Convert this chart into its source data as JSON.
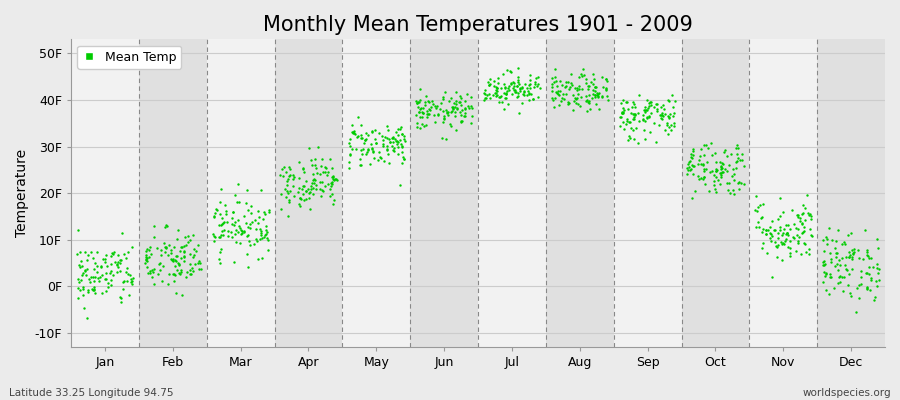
{
  "title": "Monthly Mean Temperatures 1901 - 2009",
  "ylabel": "Temperature",
  "xlabel_labels": [
    "Jan",
    "Feb",
    "Mar",
    "Apr",
    "May",
    "Jun",
    "Jul",
    "Aug",
    "Sep",
    "Oct",
    "Nov",
    "Dec"
  ],
  "ytick_labels": [
    "-10F",
    "0F",
    "10F",
    "20F",
    "30F",
    "40F",
    "50F"
  ],
  "ytick_values": [
    -10,
    0,
    10,
    20,
    30,
    40,
    50
  ],
  "ylim": [
    -13,
    53
  ],
  "dot_color": "#00CC00",
  "dot_size": 3,
  "figure_bg": "#ebebeb",
  "plot_bg_light": "#f2f2f2",
  "plot_bg_dark": "#e0e0e0",
  "vline_color": "#888888",
  "hline_color": "#cccccc",
  "title_fontsize": 15,
  "axis_label_fontsize": 9,
  "tick_fontsize": 9,
  "legend_label": "Mean Temp",
  "bottom_left_text": "Latitude 33.25 Longitude 94.75",
  "bottom_right_text": "worldspecies.org",
  "monthly_means": [
    2.5,
    5.5,
    13.0,
    22.5,
    30.5,
    37.5,
    42.5,
    41.5,
    36.5,
    25.5,
    12.0,
    4.5
  ],
  "monthly_stds": [
    3.5,
    3.5,
    3.2,
    2.8,
    2.5,
    2.0,
    1.8,
    2.0,
    2.5,
    3.0,
    3.5,
    3.8
  ],
  "n_years": 109,
  "seed": 42
}
